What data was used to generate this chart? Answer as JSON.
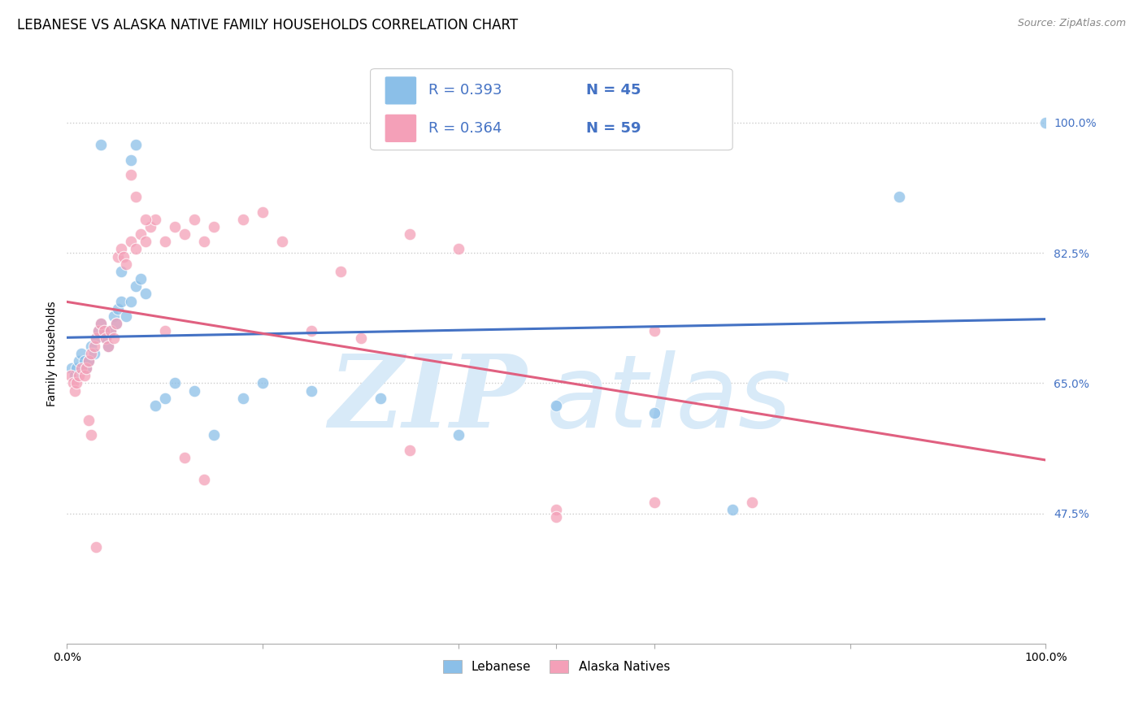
{
  "title": "LEBANESE VS ALASKA NATIVE FAMILY HOUSEHOLDS CORRELATION CHART",
  "source": "Source: ZipAtlas.com",
  "ylabel": "Family Households",
  "yticks": [
    "47.5%",
    "65.0%",
    "82.5%",
    "100.0%"
  ],
  "ytick_vals": [
    0.475,
    0.65,
    0.825,
    1.0
  ],
  "xlim": [
    0.0,
    1.0
  ],
  "ylim": [
    0.3,
    1.08
  ],
  "legend_r_blue": "R = 0.393",
  "legend_n_blue": "N = 45",
  "legend_r_pink": "R = 0.364",
  "legend_n_pink": "N = 59",
  "color_blue": "#8bbfe8",
  "color_pink": "#f4a0b8",
  "line_color_blue": "#4472c4",
  "line_color_pink": "#e06080",
  "watermark_zip": "ZIP",
  "watermark_atlas": "atlas",
  "watermark_color": "#d8eaf8",
  "blue_scatter_x": [
    0.035,
    0.065,
    0.07,
    0.005,
    0.008,
    0.01,
    0.012,
    0.015,
    0.018,
    0.02,
    0.022,
    0.025,
    0.028,
    0.03,
    0.032,
    0.035,
    0.038,
    0.04,
    0.042,
    0.045,
    0.048,
    0.05,
    0.052,
    0.055,
    0.06,
    0.065,
    0.07,
    0.075,
    0.08,
    0.09,
    0.1,
    0.11,
    0.13,
    0.15,
    0.18,
    0.2,
    0.25,
    0.32,
    0.4,
    0.5,
    0.6,
    0.68,
    0.85,
    1.0,
    0.055
  ],
  "blue_scatter_y": [
    0.97,
    0.95,
    0.97,
    0.67,
    0.66,
    0.67,
    0.68,
    0.69,
    0.68,
    0.67,
    0.68,
    0.7,
    0.69,
    0.71,
    0.72,
    0.73,
    0.72,
    0.71,
    0.7,
    0.72,
    0.74,
    0.73,
    0.75,
    0.76,
    0.74,
    0.76,
    0.78,
    0.79,
    0.77,
    0.62,
    0.63,
    0.65,
    0.64,
    0.58,
    0.63,
    0.65,
    0.64,
    0.63,
    0.58,
    0.62,
    0.61,
    0.48,
    0.9,
    1.0,
    0.8
  ],
  "pink_scatter_x": [
    0.004,
    0.006,
    0.008,
    0.01,
    0.012,
    0.015,
    0.018,
    0.02,
    0.022,
    0.025,
    0.028,
    0.03,
    0.032,
    0.035,
    0.038,
    0.04,
    0.042,
    0.045,
    0.048,
    0.05,
    0.052,
    0.055,
    0.058,
    0.06,
    0.065,
    0.07,
    0.075,
    0.08,
    0.085,
    0.09,
    0.1,
    0.11,
    0.12,
    0.13,
    0.14,
    0.15,
    0.18,
    0.2,
    0.22,
    0.25,
    0.28,
    0.3,
    0.35,
    0.4,
    0.5,
    0.6,
    0.065,
    0.07,
    0.08,
    0.1,
    0.12,
    0.14,
    0.35,
    0.5,
    0.6,
    0.7,
    0.022,
    0.025,
    0.03
  ],
  "pink_scatter_y": [
    0.66,
    0.65,
    0.64,
    0.65,
    0.66,
    0.67,
    0.66,
    0.67,
    0.68,
    0.69,
    0.7,
    0.71,
    0.72,
    0.73,
    0.72,
    0.71,
    0.7,
    0.72,
    0.71,
    0.73,
    0.82,
    0.83,
    0.82,
    0.81,
    0.84,
    0.83,
    0.85,
    0.84,
    0.86,
    0.87,
    0.84,
    0.86,
    0.85,
    0.87,
    0.84,
    0.86,
    0.87,
    0.88,
    0.84,
    0.72,
    0.8,
    0.71,
    0.85,
    0.83,
    0.48,
    0.72,
    0.93,
    0.9,
    0.87,
    0.72,
    0.55,
    0.52,
    0.56,
    0.47,
    0.49,
    0.49,
    0.6,
    0.58,
    0.43
  ],
  "title_fontsize": 12,
  "axis_label_fontsize": 10,
  "tick_fontsize": 10,
  "source_fontsize": 9,
  "legend_fontsize": 13
}
